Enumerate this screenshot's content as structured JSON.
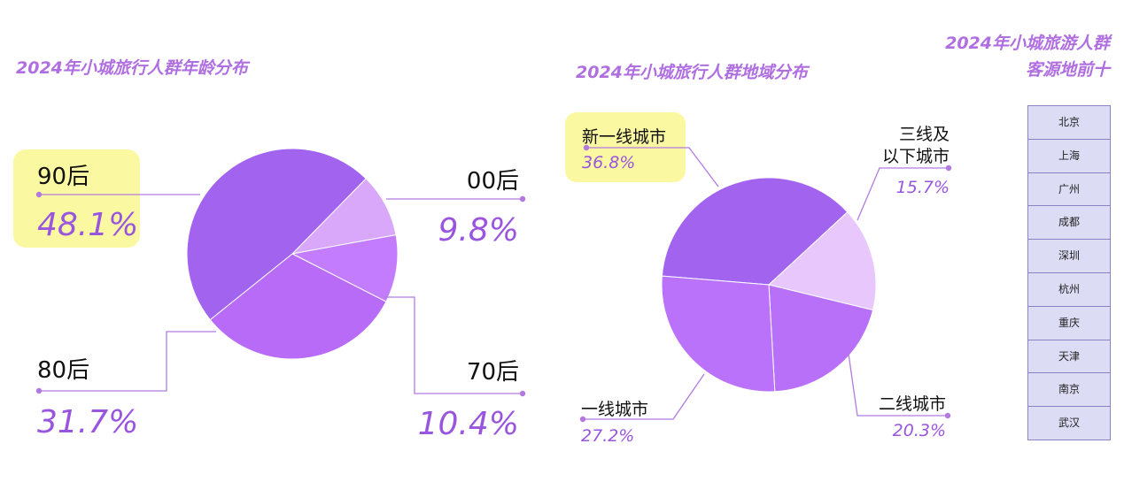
{
  "chart_data": [
    {
      "type": "pie",
      "title": "2024年小城旅行人群年龄分布",
      "categories": [
        "90后",
        "00后",
        "70后",
        "80后"
      ],
      "values": [
        48.1,
        9.8,
        10.4,
        31.7
      ],
      "labels_pct": [
        "48.1%",
        "9.8%",
        "10.4%",
        "31.7%"
      ],
      "colors": [
        "#a263ef",
        "#daa8fa",
        "#c47cff",
        "#b86bf6"
      ],
      "highlight": "90后"
    },
    {
      "type": "pie",
      "title": "2024年小城旅行人群地域分布",
      "categories": [
        "新一线城市",
        "三线及以下城市",
        "二线城市",
        "一线城市"
      ],
      "label_lines": [
        [
          "新一线城市"
        ],
        [
          "三线及",
          "以下城市"
        ],
        [
          "二线城市"
        ],
        [
          "一线城市"
        ]
      ],
      "values": [
        36.8,
        15.7,
        20.3,
        27.2
      ],
      "labels_pct": [
        "36.8%",
        "15.7%",
        "20.3%",
        "27.2%"
      ],
      "colors": [
        "#a263ef",
        "#e8c8fc",
        "#b770f7",
        "#bb72fa"
      ],
      "highlight": "新一线城市"
    },
    {
      "type": "table",
      "title_lines": [
        "2024年小城旅游人群",
        "客源地前十"
      ],
      "rows": [
        "北京",
        "上海",
        "广州",
        "成都",
        "深圳",
        "杭州",
        "重庆",
        "天津",
        "南京",
        "武汉"
      ]
    }
  ]
}
